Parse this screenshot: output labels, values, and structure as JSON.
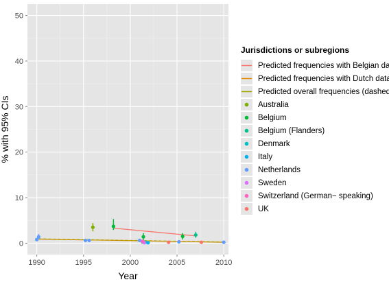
{
  "chart_data": {
    "type": "scatter",
    "title": "",
    "xlabel": "Year",
    "ylabel": "% with 95% CIs",
    "xlim": [
      1989,
      2010.5
    ],
    "ylim": [
      -2.5,
      52.5
    ],
    "xticks": [
      1990,
      1995,
      2000,
      2005,
      2010
    ],
    "yticks": [
      0,
      10,
      20,
      30,
      40,
      50
    ],
    "grid": true,
    "background": "#e5e5e5",
    "legend_title": "Jurisdictions or subregions",
    "legend_position": "right",
    "lines": [
      {
        "name": "Predicted frequencies with Belgian data",
        "color": "#f8766d",
        "dashed": false,
        "points": [
          [
            1998.2,
            3.3
          ],
          [
            2007.0,
            1.6
          ]
        ]
      },
      {
        "name": "Predicted frequencies with Dutch data",
        "color": "#e38900",
        "dashed": false,
        "points": [
          [
            1990.2,
            0.9
          ],
          [
            2010.0,
            0.2
          ]
        ]
      },
      {
        "name": "Predicted overall frequencies (dashed)",
        "color": "#a3a500",
        "dashed": true,
        "points": [
          [
            1990.2,
            0.95
          ],
          [
            2010.0,
            0.25
          ]
        ]
      }
    ],
    "series": [
      {
        "name": "Australia",
        "color": "#7cae00",
        "points": [
          {
            "x": 1996.0,
            "y": 3.5,
            "lo": 2.6,
            "hi": 4.4
          }
        ]
      },
      {
        "name": "Belgium",
        "color": "#00ba38",
        "points": [
          {
            "x": 1998.2,
            "y": 3.7,
            "lo": 2.9,
            "hi": 5.3
          },
          {
            "x": 2001.4,
            "y": 1.4,
            "lo": 0.7,
            "hi": 2.2
          },
          {
            "x": 2005.6,
            "y": 1.5,
            "lo": 0.8,
            "hi": 2.2
          }
        ]
      },
      {
        "name": "Belgium (Flanders)",
        "color": "#00c08b",
        "points": [
          {
            "x": 2007.0,
            "y": 1.8,
            "lo": 1.2,
            "hi": 2.5
          },
          {
            "x": 2001.3,
            "y": 0.3,
            "lo": 0.1,
            "hi": 0.6
          }
        ]
      },
      {
        "name": "Denmark",
        "color": "#00bfc4",
        "points": [
          {
            "x": 2001.6,
            "y": 0.2,
            "lo": 0.1,
            "hi": 0.4
          }
        ]
      },
      {
        "name": "Italy",
        "color": "#00b4f0",
        "points": [
          {
            "x": 2001.9,
            "y": 0.1,
            "lo": 0.0,
            "hi": 0.3
          }
        ]
      },
      {
        "name": "Netherlands",
        "color": "#619cff",
        "points": [
          {
            "x": 1990.2,
            "y": 1.4,
            "lo": 0.9,
            "hi": 2.0
          },
          {
            "x": 1990.0,
            "y": 0.8,
            "lo": 0.6,
            "hi": 1.0
          },
          {
            "x": 1995.2,
            "y": 0.6,
            "lo": 0.5,
            "hi": 0.7
          },
          {
            "x": 1995.6,
            "y": 0.6,
            "lo": 0.5,
            "hi": 0.7
          },
          {
            "x": 2001.0,
            "y": 0.6,
            "lo": 0.5,
            "hi": 0.8
          },
          {
            "x": 2005.2,
            "y": 0.3,
            "lo": 0.2,
            "hi": 0.4
          },
          {
            "x": 2010.0,
            "y": 0.2,
            "lo": 0.1,
            "hi": 0.3
          }
        ]
      },
      {
        "name": "Sweden",
        "color": "#db72fb",
        "points": [
          {
            "x": 2001.5,
            "y": 0.1,
            "lo": 0.0,
            "hi": 0.2
          }
        ]
      },
      {
        "name": "Switzerland (German− speaking)",
        "color": "#ff61c3",
        "points": [
          {
            "x": 2001.3,
            "y": 0.4,
            "lo": 0.2,
            "hi": 0.6
          }
        ]
      },
      {
        "name": "UK",
        "color": "#f8766d",
        "points": [
          {
            "x": 2004.1,
            "y": 0.2,
            "lo": 0.1,
            "hi": 0.3
          },
          {
            "x": 2007.6,
            "y": 0.2,
            "lo": 0.1,
            "hi": 0.3
          }
        ]
      }
    ]
  }
}
